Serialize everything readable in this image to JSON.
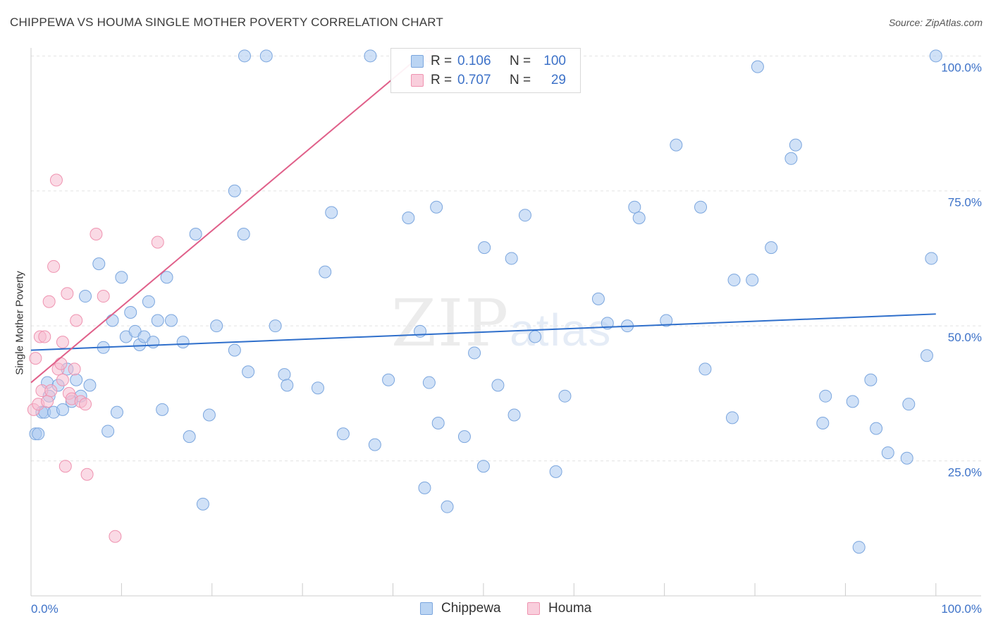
{
  "header": {
    "title": "CHIPPEWA VS HOUMA SINGLE MOTHER POVERTY CORRELATION CHART",
    "source": "Source: ZipAtlas.com"
  },
  "watermark": {
    "zip": "ZIP",
    "atlas": "atlas"
  },
  "legend": {
    "rows": [
      {
        "r_label": "R =",
        "r_value": "0.106",
        "n_label": "N =",
        "n_value": "100"
      },
      {
        "r_label": "R =",
        "r_value": "0.707",
        "n_label": "N =",
        "n_value": "29"
      }
    ],
    "bottom": [
      "Chippewa",
      "Houma"
    ]
  },
  "colors": {
    "chippewa_fill": "#a9c9f0",
    "chippewa_stroke": "#7ba6de",
    "chippewa_line": "#2f6fcb",
    "houma_fill": "#f6bccf",
    "houma_stroke": "#ef93b0",
    "houma_line": "#e0608a",
    "tick_label": "#3d72c8",
    "grid": "#e3e3e3"
  },
  "chart_data": {
    "type": "scatter",
    "title": "CHIPPEWA VS HOUMA SINGLE MOTHER POVERTY CORRELATION CHART",
    "xlabel": "",
    "ylabel": "Single Mother Poverty",
    "xlim": [
      0,
      1.05
    ],
    "ylim": [
      0,
      1.02
    ],
    "x_tick_labels": [
      "0.0%",
      "100.0%"
    ],
    "y_ticks": [
      0.25,
      0.5,
      0.75,
      1.0
    ],
    "y_tick_labels": [
      "25.0%",
      "50.0%",
      "75.0%",
      "100.0%"
    ],
    "grid": "horizontal dashed",
    "legend_placement": "top-center",
    "series": [
      {
        "name": "Chippewa",
        "r": 0.106,
        "n": 100,
        "trend": {
          "x": [
            0,
            1.0
          ],
          "y": [
            0.455,
            0.522
          ]
        },
        "points": [
          [
            0.005,
            0.3
          ],
          [
            0.008,
            0.3
          ],
          [
            0.012,
            0.34
          ],
          [
            0.015,
            0.34
          ],
          [
            0.018,
            0.395
          ],
          [
            0.02,
            0.37
          ],
          [
            0.025,
            0.34
          ],
          [
            0.03,
            0.39
          ],
          [
            0.035,
            0.345
          ],
          [
            0.04,
            0.42
          ],
          [
            0.045,
            0.36
          ],
          [
            0.05,
            0.4
          ],
          [
            0.055,
            0.37
          ],
          [
            0.06,
            0.555
          ],
          [
            0.065,
            0.39
          ],
          [
            0.075,
            0.615
          ],
          [
            0.08,
            0.46
          ],
          [
            0.085,
            0.305
          ],
          [
            0.09,
            0.51
          ],
          [
            0.095,
            0.34
          ],
          [
            0.1,
            0.59
          ],
          [
            0.105,
            0.48
          ],
          [
            0.11,
            0.525
          ],
          [
            0.115,
            0.49
          ],
          [
            0.12,
            0.465
          ],
          [
            0.125,
            0.48
          ],
          [
            0.13,
            0.545
          ],
          [
            0.135,
            0.47
          ],
          [
            0.14,
            0.51
          ],
          [
            0.145,
            0.345
          ],
          [
            0.15,
            0.59
          ],
          [
            0.155,
            0.51
          ],
          [
            0.168,
            0.47
          ],
          [
            0.175,
            0.295
          ],
          [
            0.182,
            0.67
          ],
          [
            0.19,
            0.17
          ],
          [
            0.197,
            0.335
          ],
          [
            0.205,
            0.5
          ],
          [
            0.225,
            0.455
          ],
          [
            0.225,
            0.75
          ],
          [
            0.235,
            0.67
          ],
          [
            0.236,
            1.0
          ],
          [
            0.24,
            0.415
          ],
          [
            0.26,
            1.0
          ],
          [
            0.27,
            0.5
          ],
          [
            0.28,
            0.41
          ],
          [
            0.283,
            0.39
          ],
          [
            0.317,
            0.385
          ],
          [
            0.325,
            0.6
          ],
          [
            0.332,
            0.71
          ],
          [
            0.345,
            0.3
          ],
          [
            0.375,
            1.0
          ],
          [
            0.38,
            0.28
          ],
          [
            0.395,
            0.4
          ],
          [
            0.417,
            0.7
          ],
          [
            0.43,
            0.49
          ],
          [
            0.435,
            0.2
          ],
          [
            0.44,
            0.395
          ],
          [
            0.448,
            0.72
          ],
          [
            0.45,
            0.32
          ],
          [
            0.46,
            0.165
          ],
          [
            0.479,
            0.295
          ],
          [
            0.49,
            0.45
          ],
          [
            0.5,
            0.24
          ],
          [
            0.501,
            0.645
          ],
          [
            0.516,
            0.39
          ],
          [
            0.531,
            0.625
          ],
          [
            0.534,
            0.335
          ],
          [
            0.546,
            0.705
          ],
          [
            0.557,
            0.48
          ],
          [
            0.58,
            0.23
          ],
          [
            0.59,
            0.37
          ],
          [
            0.627,
            0.55
          ],
          [
            0.637,
            0.505
          ],
          [
            0.659,
            0.5
          ],
          [
            0.667,
            0.72
          ],
          [
            0.672,
            0.7
          ],
          [
            0.702,
            0.51
          ],
          [
            0.713,
            0.835
          ],
          [
            0.74,
            0.72
          ],
          [
            0.745,
            0.42
          ],
          [
            0.775,
            0.33
          ],
          [
            0.777,
            0.585
          ],
          [
            0.797,
            0.585
          ],
          [
            0.803,
            0.98
          ],
          [
            0.818,
            0.645
          ],
          [
            0.84,
            0.81
          ],
          [
            0.845,
            0.835
          ],
          [
            0.875,
            0.32
          ],
          [
            0.878,
            0.37
          ],
          [
            0.908,
            0.36
          ],
          [
            0.915,
            0.09
          ],
          [
            0.928,
            0.4
          ],
          [
            0.934,
            0.31
          ],
          [
            0.947,
            0.265
          ],
          [
            0.968,
            0.255
          ],
          [
            0.97,
            0.355
          ],
          [
            0.99,
            0.445
          ],
          [
            0.995,
            0.625
          ],
          [
            1.0,
            1.0
          ]
        ]
      },
      {
        "name": "Houma",
        "r": 0.707,
        "n": 29,
        "trend": {
          "x": [
            0.0,
            0.43
          ],
          "y": [
            0.395,
            1.0
          ]
        },
        "points": [
          [
            0.003,
            0.345
          ],
          [
            0.005,
            0.44
          ],
          [
            0.008,
            0.355
          ],
          [
            0.01,
            0.48
          ],
          [
            0.012,
            0.38
          ],
          [
            0.015,
            0.48
          ],
          [
            0.018,
            0.36
          ],
          [
            0.02,
            0.545
          ],
          [
            0.022,
            0.38
          ],
          [
            0.025,
            0.61
          ],
          [
            0.028,
            0.77
          ],
          [
            0.03,
            0.42
          ],
          [
            0.033,
            0.43
          ],
          [
            0.035,
            0.4
          ],
          [
            0.035,
            0.47
          ],
          [
            0.038,
            0.24
          ],
          [
            0.04,
            0.56
          ],
          [
            0.042,
            0.375
          ],
          [
            0.045,
            0.365
          ],
          [
            0.048,
            0.42
          ],
          [
            0.05,
            0.51
          ],
          [
            0.055,
            0.36
          ],
          [
            0.06,
            0.355
          ],
          [
            0.062,
            0.225
          ],
          [
            0.072,
            0.67
          ],
          [
            0.08,
            0.555
          ],
          [
            0.093,
            0.11
          ],
          [
            0.14,
            0.655
          ],
          [
            0.44,
            1.0
          ]
        ]
      }
    ]
  }
}
